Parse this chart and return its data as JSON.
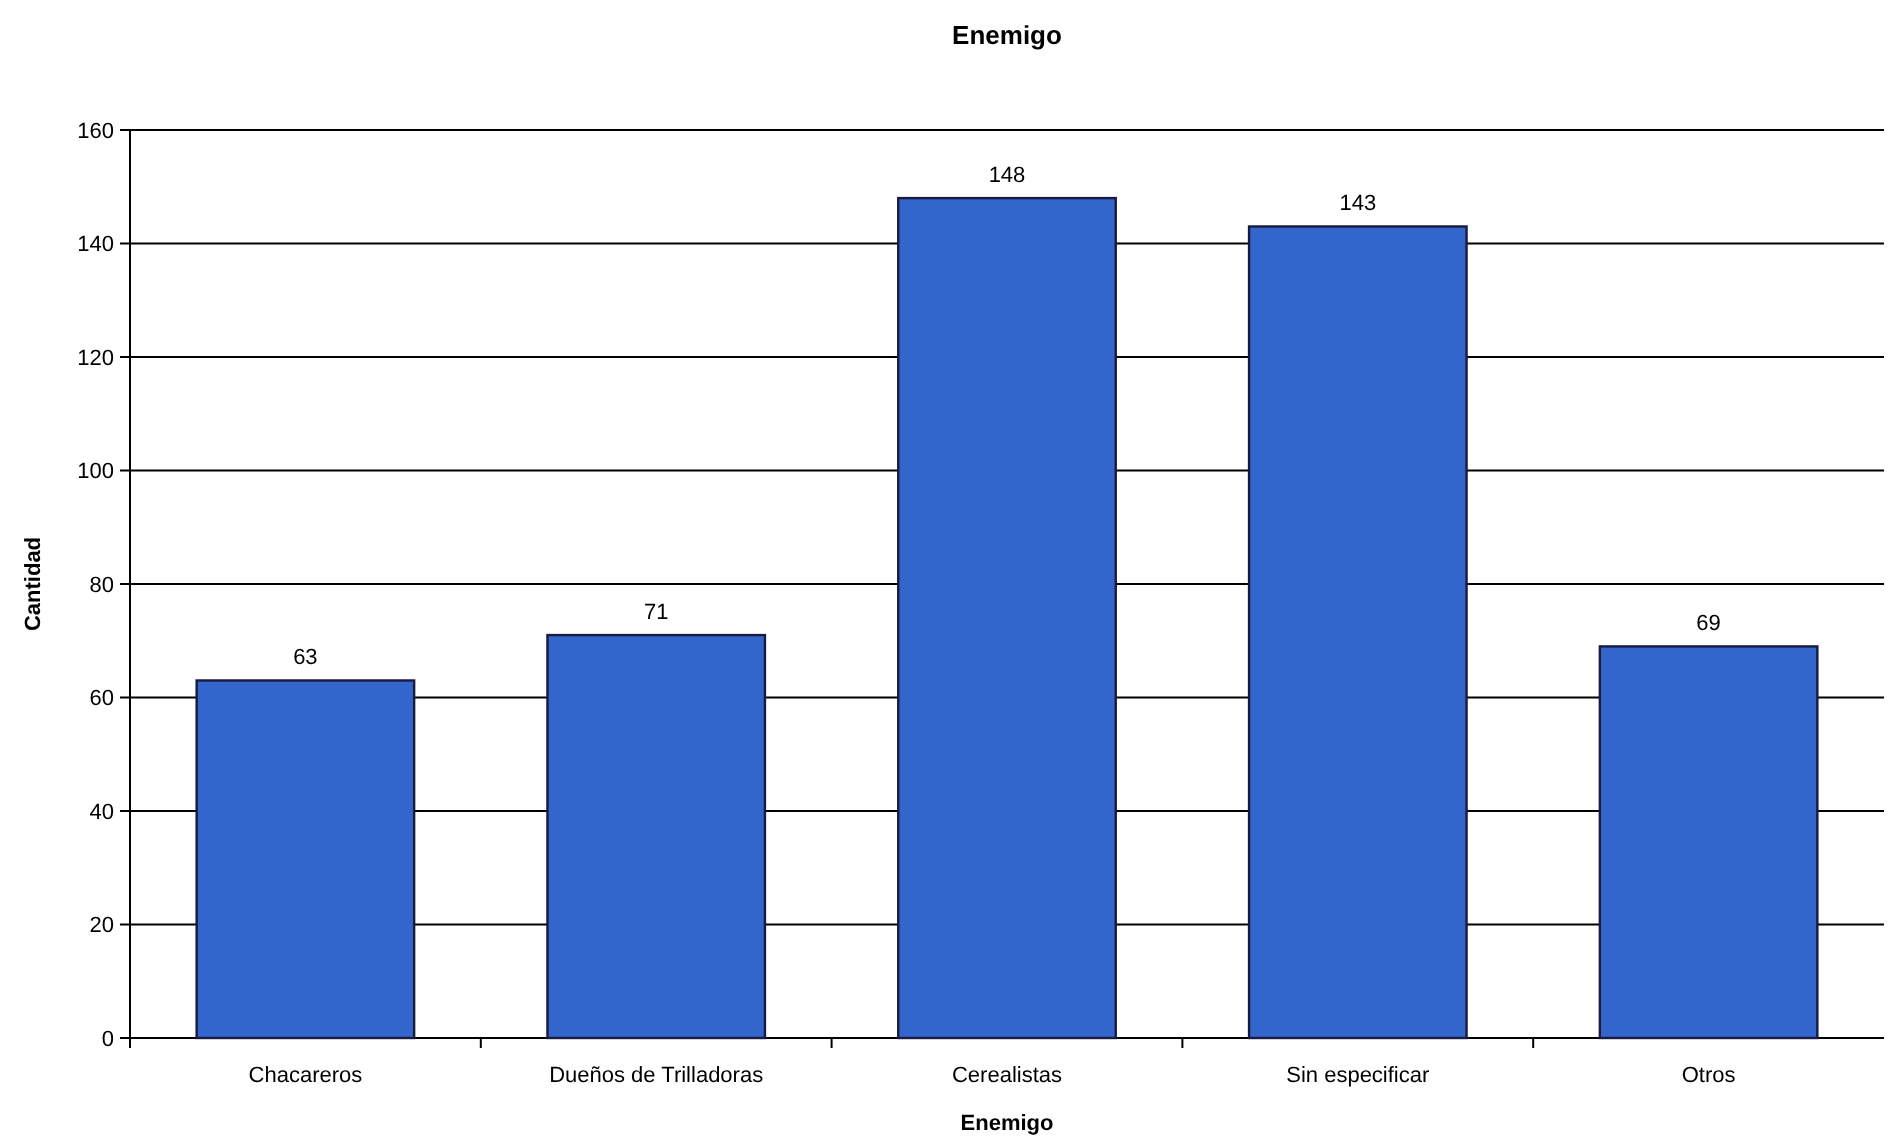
{
  "chart_data": {
    "type": "bar",
    "title": "Enemigo",
    "xlabel": "Enemigo",
    "ylabel": "Cantidad",
    "categories": [
      "Chacareros",
      "Dueños de Trilladoras",
      "Cerealistas",
      "Sin especificar",
      "Otros"
    ],
    "values": [
      63,
      71,
      148,
      143,
      69
    ],
    "color": "#3366cc",
    "ylim": [
      0,
      160
    ],
    "yticks": [
      0,
      20,
      40,
      60,
      80,
      100,
      120,
      140,
      160
    ],
    "grid": "y",
    "data_labels": true
  }
}
